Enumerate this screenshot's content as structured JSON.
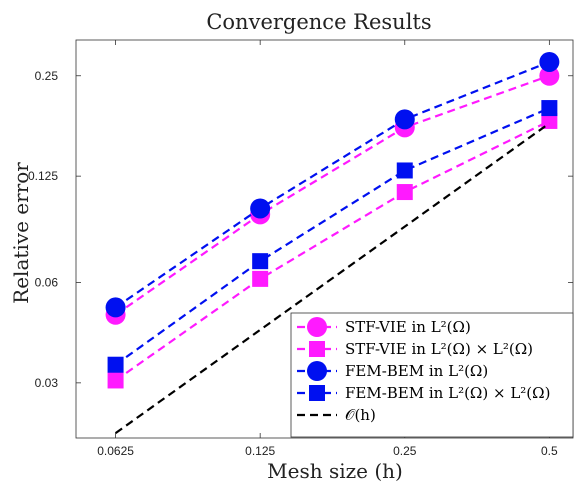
{
  "chart_data": {
    "type": "line",
    "title": "Convergence Results",
    "xlabel": "Mesh size (h)",
    "ylabel": "Relative error",
    "x": [
      0.0625,
      0.125,
      0.25,
      0.5
    ],
    "x_ticks": [
      "0.0625",
      "0.125",
      "0.25",
      "0.5"
    ],
    "y_ticks": [
      0.03,
      0.06,
      0.125,
      0.25
    ],
    "y_tick_labels": [
      "0.03",
      "0.06",
      "0.125",
      "0.25"
    ],
    "xscale": "log",
    "yscale": "log",
    "xlim": [
      0.0517,
      0.56
    ],
    "ylim": [
      0.0205,
      0.32
    ],
    "grid": false,
    "legend_position": "bottom-right",
    "series": [
      {
        "name": "STF-VIE in L²(Ω)",
        "values": [
          0.048,
          0.096,
          0.175,
          0.25
        ],
        "color": "#ff1aff",
        "marker": "circle",
        "linestyle": "dashed"
      },
      {
        "name": "STF-VIE in L²(Ω) × L²(Ω)",
        "values": [
          0.0305,
          0.0615,
          0.112,
          0.183
        ],
        "color": "#ff1aff",
        "marker": "square",
        "linestyle": "dashed"
      },
      {
        "name": "FEM-BEM in L²(Ω)",
        "values": [
          0.0505,
          0.1,
          0.185,
          0.275
        ],
        "color": "#0010f0",
        "marker": "circle",
        "linestyle": "dashed"
      },
      {
        "name": "FEM-BEM in L²(Ω) × L²(Ω)",
        "values": [
          0.034,
          0.0695,
          0.13,
          0.2
        ],
        "color": "#0010f0",
        "marker": "square",
        "linestyle": "dashed"
      },
      {
        "name": "𝒪(h)",
        "values": [
          0.0212,
          null,
          null,
          0.18
        ],
        "color": "#000000",
        "marker": "none",
        "linestyle": "dashed"
      }
    ]
  }
}
